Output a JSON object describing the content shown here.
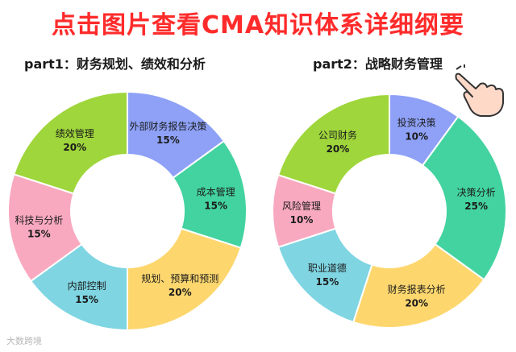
{
  "banner": {
    "text": "点击图片查看CMA知识体系详细纲要"
  },
  "watermark": {
    "text": "大数跨境"
  },
  "chart_data": [
    {
      "type": "pie",
      "donut": true,
      "title": "part1：财务规划、绩效和分析",
      "categories": [
        "外部财务报告决策",
        "成本管理",
        "规划、预算和预测",
        "内部控制",
        "科技与分析",
        "绩效管理"
      ],
      "values": [
        15,
        15,
        20,
        15,
        15,
        20
      ],
      "labels": [
        "15%",
        "15%",
        "20%",
        "15%",
        "15%",
        "20%"
      ],
      "colors": [
        "#8ea1f7",
        "#43d3a0",
        "#fdd76e",
        "#7fd5e2",
        "#f8a9bf",
        "#9fd63b"
      ]
    },
    {
      "type": "pie",
      "donut": true,
      "title": "part2：战略财务管理",
      "categories": [
        "投资决策",
        "决策分析",
        "财务报表分析",
        "职业道德",
        "风险管理",
        "公司财务"
      ],
      "values": [
        10,
        25,
        20,
        15,
        10,
        20
      ],
      "labels": [
        "10%",
        "25%",
        "20%",
        "15%",
        "10%",
        "20%"
      ],
      "colors": [
        "#8ea1f7",
        "#43d3a0",
        "#fdd76e",
        "#7fd5e2",
        "#f8a9bf",
        "#9fd63b"
      ]
    }
  ]
}
